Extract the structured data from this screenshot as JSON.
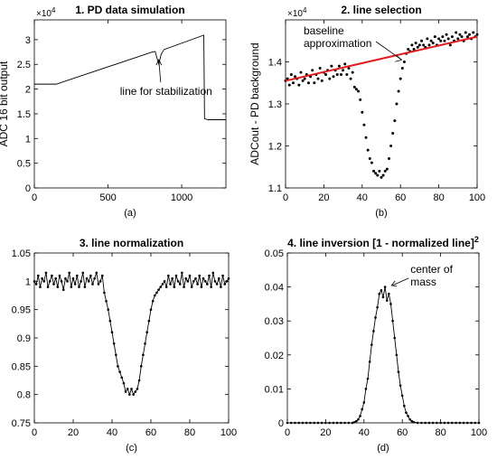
{
  "chart_data": [
    {
      "type": "line",
      "title": "1. PD data simulation",
      "ylabel": "ADC 16 bit output",
      "xlabel": "",
      "panel_label": "(a)",
      "y_multiplier": "×10^4",
      "xlim": [
        0,
        1300
      ],
      "ylim": [
        0,
        3.4
      ],
      "xticks": [
        0,
        500,
        1000
      ],
      "yticks": [
        0,
        0.5,
        1,
        1.5,
        2,
        2.5,
        3
      ],
      "annotations": [
        {
          "text": "line for stabilization",
          "x": 845,
          "y": 2.65
        }
      ],
      "series": [
        {
          "x": [
            0,
            150,
            180,
            800,
            820,
            835,
            845,
            860,
            880,
            1140,
            1150,
            1155,
            1180,
            1300
          ],
          "y": [
            2.1,
            2.1,
            2.13,
            2.75,
            2.76,
            2.6,
            2.5,
            2.7,
            2.8,
            3.08,
            3.09,
            1.4,
            1.38,
            1.38
          ]
        }
      ]
    },
    {
      "type": "scatter",
      "title": "2. line selection",
      "ylabel": "ADCout - PD background",
      "xlabel": "",
      "panel_label": "(b)",
      "y_multiplier": "×10^4",
      "xlim": [
        0,
        100
      ],
      "ylim": [
        1.1,
        1.5
      ],
      "xticks": [
        0,
        20,
        40,
        60,
        80,
        100
      ],
      "yticks": [
        1.1,
        1.2,
        1.3,
        1.4
      ],
      "annotations": [
        {
          "text": "baseline approximation",
          "x": 54,
          "y": 1.42
        }
      ],
      "series": [
        {
          "name": "data",
          "x": [
            0,
            1,
            2,
            3,
            4,
            5,
            6,
            7,
            8,
            9,
            10,
            11,
            12,
            13,
            14,
            15,
            16,
            17,
            18,
            19,
            20,
            21,
            22,
            23,
            24,
            25,
            26,
            27,
            28,
            29,
            30,
            31,
            32,
            33,
            34,
            35,
            36,
            37,
            38,
            39,
            40,
            41,
            42,
            43,
            44,
            45,
            46,
            47,
            48,
            49,
            50,
            51,
            52,
            53,
            54,
            55,
            56,
            57,
            58,
            59,
            60,
            61,
            62,
            63,
            64,
            65,
            66,
            67,
            68,
            69,
            70,
            71,
            72,
            73,
            74,
            75,
            76,
            77,
            78,
            79,
            80,
            81,
            82,
            83,
            84,
            85,
            86,
            87,
            88,
            89,
            90,
            91,
            92,
            93,
            94,
            95,
            96,
            97,
            98,
            99,
            100
          ],
          "y": [
            1.355,
            1.36,
            1.345,
            1.37,
            1.35,
            1.365,
            1.36,
            1.345,
            1.375,
            1.355,
            1.36,
            1.37,
            1.35,
            1.365,
            1.38,
            1.35,
            1.37,
            1.36,
            1.385,
            1.355,
            1.375,
            1.37,
            1.38,
            1.36,
            1.39,
            1.365,
            1.38,
            1.37,
            1.39,
            1.37,
            1.38,
            1.395,
            1.37,
            1.385,
            1.36,
            1.375,
            1.34,
            1.335,
            1.33,
            1.31,
            1.28,
            1.25,
            1.22,
            1.19,
            1.17,
            1.16,
            1.14,
            1.135,
            1.13,
            1.14,
            1.125,
            1.13,
            1.14,
            1.145,
            1.17,
            1.2,
            1.23,
            1.26,
            1.3,
            1.33,
            1.36,
            1.385,
            1.4,
            1.42,
            1.43,
            1.425,
            1.44,
            1.43,
            1.445,
            1.435,
            1.44,
            1.45,
            1.44,
            1.435,
            1.455,
            1.44,
            1.45,
            1.445,
            1.46,
            1.44,
            1.455,
            1.45,
            1.46,
            1.45,
            1.465,
            1.455,
            1.44,
            1.46,
            1.45,
            1.47,
            1.455,
            1.465,
            1.46,
            1.45,
            1.47,
            1.46,
            1.465,
            1.455,
            1.47,
            1.46,
            1.465
          ]
        },
        {
          "name": "baseline",
          "x": [
            0,
            100
          ],
          "y": [
            1.355,
            1.46
          ],
          "color": "#e41a1c"
        }
      ]
    },
    {
      "type": "line",
      "title": "3. line normalization",
      "ylabel": "",
      "xlabel": "",
      "panel_label": "(c)",
      "xlim": [
        0,
        100
      ],
      "ylim": [
        0.75,
        1.05
      ],
      "xticks": [
        0,
        20,
        40,
        60,
        80,
        100
      ],
      "yticks": [
        0.75,
        0.8,
        0.85,
        0.9,
        0.95,
        1,
        1.05
      ],
      "series": [
        {
          "x": [
            0,
            1,
            2,
            3,
            4,
            5,
            6,
            7,
            8,
            9,
            10,
            11,
            12,
            13,
            14,
            15,
            16,
            17,
            18,
            19,
            20,
            21,
            22,
            23,
            24,
            25,
            26,
            27,
            28,
            29,
            30,
            31,
            32,
            33,
            34,
            35,
            36,
            37,
            38,
            39,
            40,
            41,
            42,
            43,
            44,
            45,
            46,
            47,
            48,
            49,
            50,
            51,
            52,
            53,
            54,
            55,
            56,
            57,
            58,
            59,
            60,
            61,
            62,
            63,
            64,
            65,
            66,
            67,
            68,
            69,
            70,
            71,
            72,
            73,
            74,
            75,
            76,
            77,
            78,
            79,
            80,
            81,
            82,
            83,
            84,
            85,
            86,
            87,
            88,
            89,
            90,
            91,
            92,
            93,
            94,
            95,
            96,
            97,
            98,
            99,
            100
          ],
          "y": [
            1.0,
            0.995,
            1.01,
            0.99,
            1.005,
            1.0,
            1.015,
            0.99,
            1.0,
            1.01,
            0.995,
            1.005,
            0.99,
            1.01,
            1.0,
            0.985,
            1.005,
            1.0,
            1.015,
            0.99,
            1.005,
            0.995,
            1.01,
            0.99,
            1.0,
            1.015,
            0.99,
            1.005,
            1.0,
            1.01,
            0.995,
            1.005,
            1.015,
            0.995,
            1.0,
            1.01,
            0.98,
            0.965,
            0.95,
            0.93,
            0.91,
            0.89,
            0.87,
            0.85,
            0.84,
            0.83,
            0.82,
            0.805,
            0.81,
            0.8,
            0.81,
            0.8,
            0.805,
            0.81,
            0.825,
            0.85,
            0.87,
            0.89,
            0.91,
            0.93,
            0.95,
            0.965,
            0.975,
            0.98,
            0.985,
            0.99,
            0.995,
            1.0,
            0.99,
            1.01,
            0.995,
            1.005,
            0.99,
            1.01,
            1.0,
            0.995,
            1.015,
            0.99,
            1.005,
            1.0,
            1.01,
            0.99,
            1.0,
            1.005,
            0.995,
            1.01,
            0.99,
            1.005,
            1.0,
            0.995,
            1.01,
            0.99,
            1.015,
            1.0,
            0.995,
            1.005,
            0.99,
            1.01,
            0.995,
            1.0,
            1.005
          ]
        }
      ]
    },
    {
      "type": "line",
      "title": "4. line inversion [1 - normalized line]",
      "title_superscript": "2",
      "ylabel": "",
      "xlabel": "",
      "panel_label": "(d)",
      "xlim": [
        0,
        100
      ],
      "ylim": [
        0,
        0.05
      ],
      "xticks": [
        0,
        20,
        40,
        60,
        80,
        100
      ],
      "yticks": [
        0,
        0.01,
        0.02,
        0.03,
        0.04,
        0.05
      ],
      "annotations": [
        {
          "text": "center of mass",
          "x": 52,
          "y": 0.041
        }
      ],
      "series": [
        {
          "x": [
            0,
            2,
            4,
            6,
            8,
            10,
            12,
            14,
            16,
            18,
            20,
            22,
            24,
            26,
            28,
            30,
            32,
            34,
            35,
            36,
            37,
            38,
            39,
            40,
            41,
            42,
            43,
            44,
            45,
            46,
            47,
            48,
            49,
            50,
            51,
            52,
            53,
            54,
            55,
            56,
            57,
            58,
            59,
            60,
            61,
            62,
            63,
            64,
            65,
            66,
            68,
            70,
            72,
            74,
            76,
            78,
            80,
            82,
            84,
            86,
            88,
            90,
            92,
            94,
            96,
            98,
            100
          ],
          "y": [
            0,
            0,
            0,
            0,
            0,
            0,
            0,
            0,
            0,
            0,
            0,
            0,
            0,
            0,
            0,
            0,
            0,
            0,
            0.0002,
            0.0005,
            0.001,
            0.002,
            0.004,
            0.006,
            0.01,
            0.013,
            0.018,
            0.023,
            0.027,
            0.031,
            0.034,
            0.038,
            0.039,
            0.037,
            0.04,
            0.036,
            0.038,
            0.035,
            0.03,
            0.025,
            0.02,
            0.015,
            0.011,
            0.008,
            0.005,
            0.003,
            0.002,
            0.001,
            0.0005,
            0.0002,
            0,
            0,
            0,
            0,
            0,
            0,
            0,
            0,
            0,
            0,
            0,
            0,
            0,
            0,
            0,
            0,
            0
          ]
        }
      ]
    }
  ]
}
